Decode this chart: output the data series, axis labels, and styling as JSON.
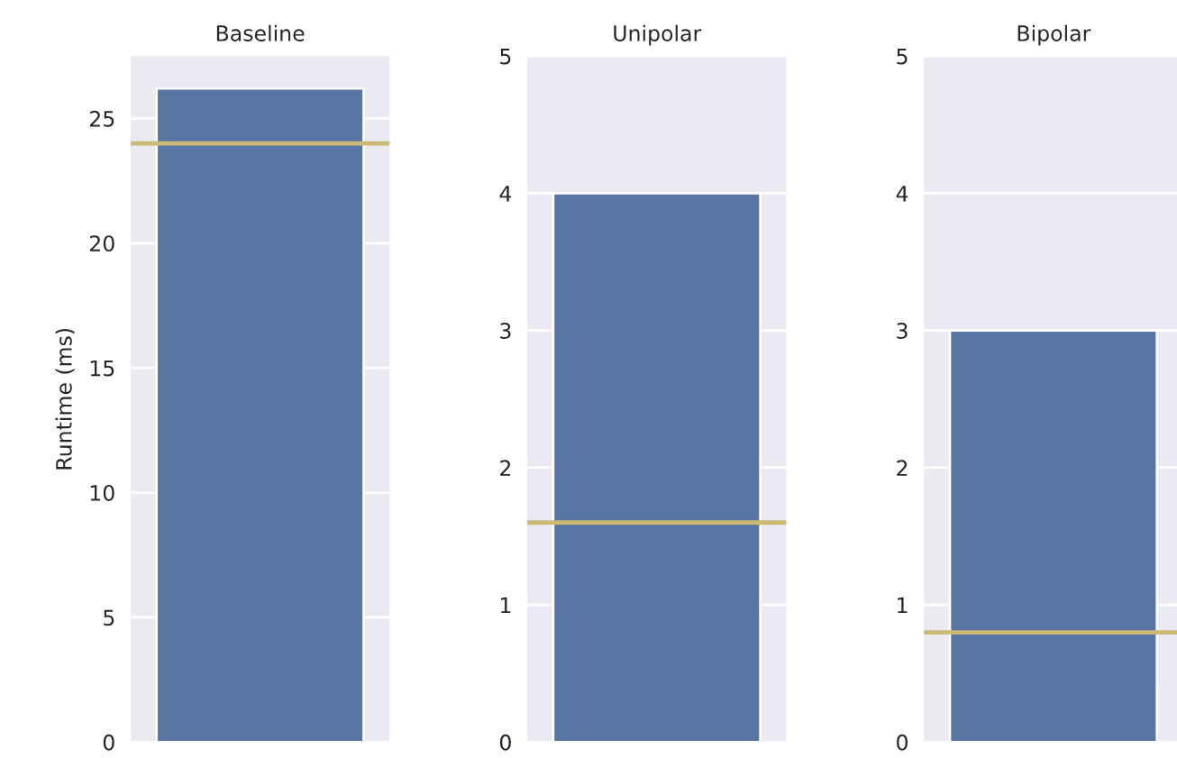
{
  "chart_data": [
    {
      "type": "bar",
      "title": "Baseline",
      "ylabel": "Runtime (ms)",
      "categories": [
        null
      ],
      "values": [
        26.2
      ],
      "color": "#5875a4",
      "ylim": [
        0,
        27.5
      ],
      "yticks": [
        0,
        5,
        10,
        15,
        20,
        25
      ],
      "grid": "y",
      "ref_lines": [
        {
          "axis": "y",
          "value": 24,
          "color": "#ccb974"
        }
      ]
    },
    {
      "type": "bar",
      "title": "Unipolar",
      "categories": [
        null
      ],
      "values": [
        4.0
      ],
      "color": "#5875a4",
      "ylim": [
        0,
        5
      ],
      "yticks": [
        0,
        1,
        2,
        3,
        4,
        5
      ],
      "grid": "y",
      "ref_lines": [
        {
          "axis": "y",
          "value": 1.6,
          "color": "#ccb974"
        }
      ]
    },
    {
      "type": "bar",
      "title": "Bipolar",
      "categories": [
        null
      ],
      "values": [
        3.0
      ],
      "color": "#5875a4",
      "ylim": [
        0,
        5
      ],
      "yticks": [
        0,
        1,
        2,
        3,
        4,
        5
      ],
      "grid": "y",
      "ref_lines": [
        {
          "axis": "y",
          "value": 0.8,
          "color": "#ccb974"
        }
      ]
    }
  ]
}
